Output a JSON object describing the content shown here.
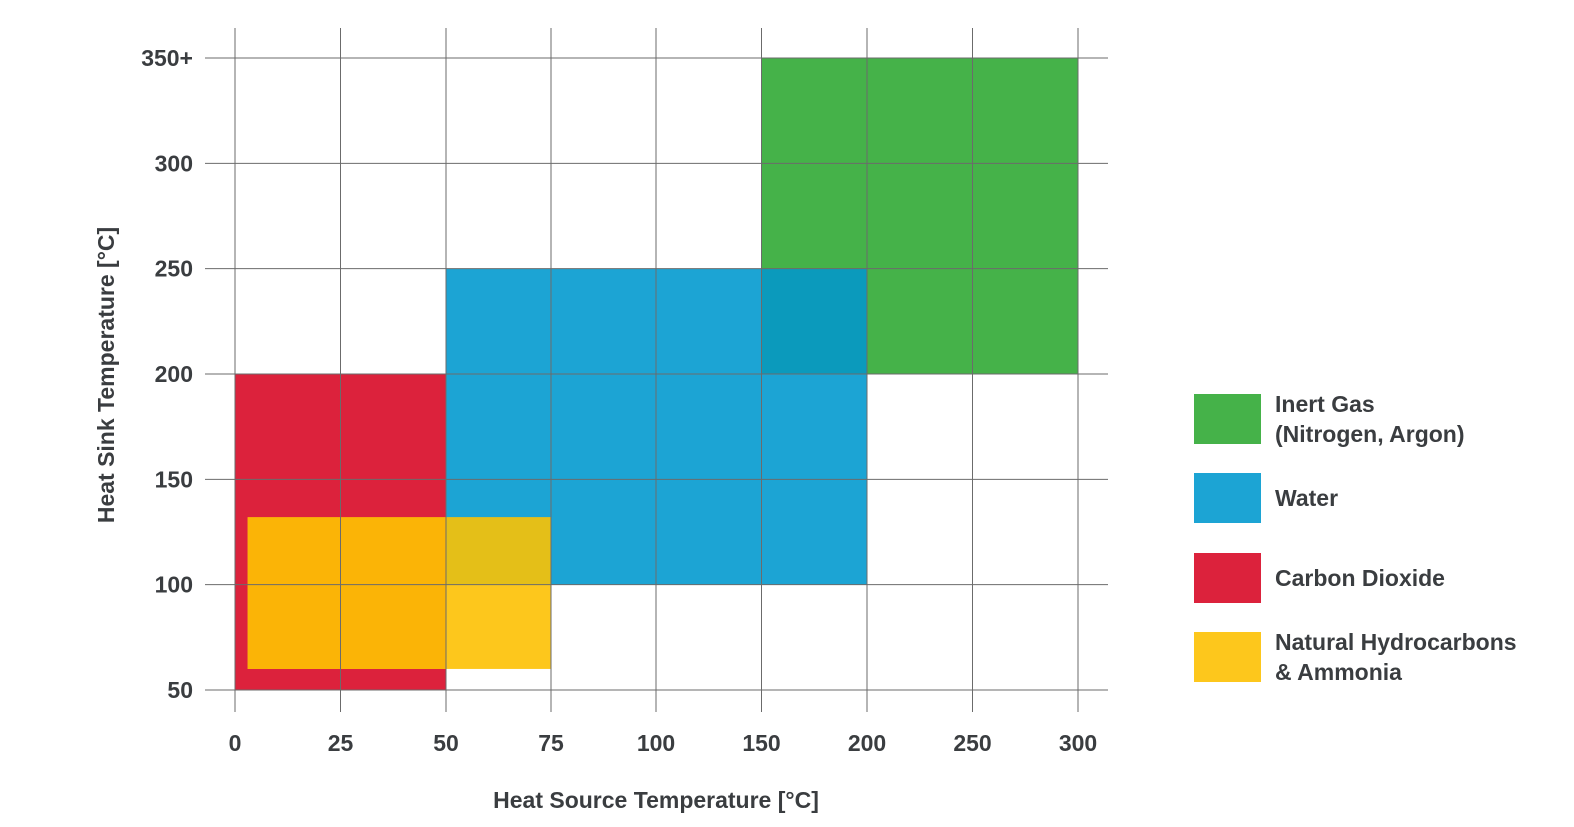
{
  "chart_data": {
    "type": "range-rectangles",
    "title": "",
    "xlabel": "Heat Source Temperature [°C]",
    "ylabel": "Heat Sink Temperature [°C]",
    "xlim": [
      0,
      300
    ],
    "ylim": [
      50,
      350
    ],
    "x_ticks": [
      {
        "value": 0,
        "label": "0"
      },
      {
        "value": 25,
        "label": "25"
      },
      {
        "value": 50,
        "label": "50"
      },
      {
        "value": 75,
        "label": "75"
      },
      {
        "value": 100,
        "label": "100"
      },
      {
        "value": 150,
        "label": "150"
      },
      {
        "value": 200,
        "label": "200"
      },
      {
        "value": 250,
        "label": "250"
      },
      {
        "value": 300,
        "label": "300"
      }
    ],
    "y_ticks": [
      {
        "value": 50,
        "label": "50"
      },
      {
        "value": 100,
        "label": "100"
      },
      {
        "value": 150,
        "label": "150"
      },
      {
        "value": 200,
        "label": "200"
      },
      {
        "value": 250,
        "label": "250"
      },
      {
        "value": 300,
        "label": "300"
      },
      {
        "value": 350,
        "label": "350+"
      }
    ],
    "grid": true,
    "legend_position": "right",
    "series": [
      {
        "key": "inert",
        "legend_lines": [
          "Inert Gas",
          "(Nitrogen, Argon)"
        ],
        "color": "#45b249",
        "x_range": [
          150,
          300
        ],
        "y_range": [
          200,
          350
        ]
      },
      {
        "key": "water",
        "legend_lines": [
          "Water"
        ],
        "color": "#1ca4d4",
        "x_range": [
          50,
          200
        ],
        "y_range": [
          100,
          250
        ]
      },
      {
        "key": "co2",
        "legend_lines": [
          "Carbon Dioxide"
        ],
        "color": "#dc223c",
        "x_range": [
          0,
          50
        ],
        "y_range": [
          50,
          200
        ]
      },
      {
        "key": "hydro",
        "legend_lines": [
          "Natural Hydrocarbons",
          "& Ammonia"
        ],
        "color": "#fdc71c",
        "x_range": [
          3,
          75
        ],
        "y_range": [
          60,
          132
        ]
      }
    ],
    "overlaps": [
      {
        "between": [
          "inert",
          "water"
        ],
        "color": "#0b9abc",
        "x_range": [
          150,
          200
        ],
        "y_range": [
          200,
          250
        ]
      },
      {
        "between": [
          "co2",
          "hydro"
        ],
        "color": "#fbb406",
        "x_range": [
          3,
          50
        ],
        "y_range": [
          60,
          132
        ]
      },
      {
        "between": [
          "water",
          "hydro"
        ],
        "color": "#e4bf18",
        "x_range": [
          50,
          75
        ],
        "y_range": [
          100,
          132
        ]
      }
    ]
  }
}
